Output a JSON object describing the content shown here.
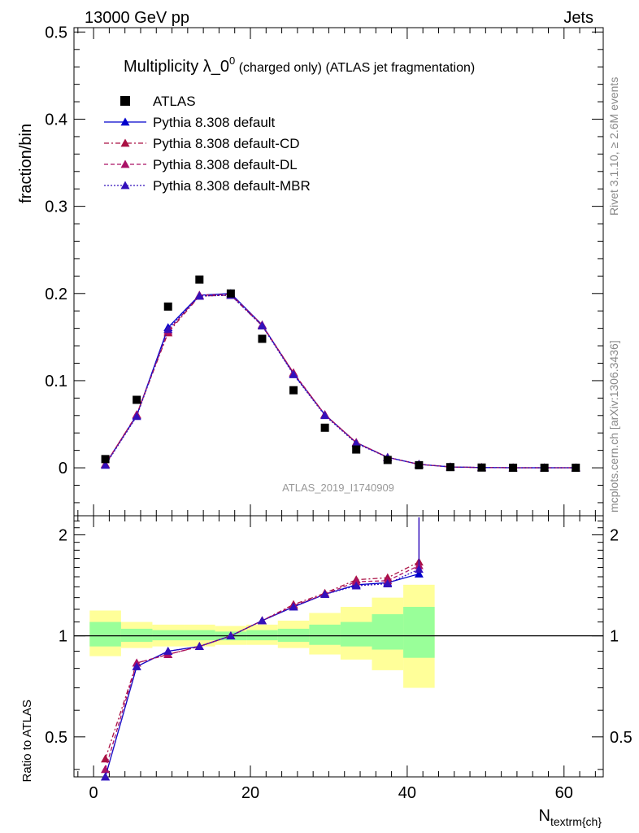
{
  "header": {
    "energy_label": "13000 GeV pp",
    "process_label": "Jets"
  },
  "side_labels": {
    "rivet": "Rivet 3.1.10, ≥ 2.6M events",
    "mcplots": "mcplots.cern.ch [arXiv:1306.3436]"
  },
  "watermark": "ATLAS_2019_I1740909",
  "chart_data": {
    "type": "scatter",
    "title": "Multiplicity λ_0",
    "title_sup": "0",
    "title_suffix": " (charged only) (ATLAS jet fragmentation)",
    "ylabel": "fraction/bin",
    "ratio_ylabel": "Ratio to ATLAS",
    "xlabel": "N",
    "xlabel_sub": "textrm{ch}",
    "xlim": [
      -2.5,
      65
    ],
    "ylim": [
      -0.055,
      0.505
    ],
    "ratio_ylim": [
      0.38,
      2.28
    ],
    "x_ticks": [
      "0",
      "20",
      "40",
      "60"
    ],
    "y_ticks": [
      "0",
      "0.1",
      "0.2",
      "0.3",
      "0.4",
      "0.5"
    ],
    "ratio_ticks": [
      "0.5",
      "1",
      "2"
    ],
    "x": [
      1.5,
      5.5,
      9.5,
      13.5,
      17.5,
      21.5,
      25.5,
      29.5,
      33.5,
      37.5,
      41.5,
      45.5,
      49.5,
      53.5,
      57.5,
      61.5
    ],
    "bin_edges": [
      -0.5,
      3.5,
      7.5,
      11.5,
      15.5,
      19.5,
      23.5,
      27.5,
      31.5,
      35.5,
      39.5,
      43.5
    ],
    "data": {
      "name": "ATLAS",
      "values": [
        0.01,
        0.078,
        0.185,
        0.216,
        0.2,
        0.148,
        0.089,
        0.046,
        0.021,
        0.009,
        0.003,
        0.0008,
        0.0003,
        0.0001,
        0.0001,
        0.0001
      ]
    },
    "band_green": [
      [
        0.93,
        1.1
      ],
      [
        0.96,
        1.05
      ],
      [
        0.97,
        1.04
      ],
      [
        0.97,
        1.04
      ],
      [
        0.97,
        1.03
      ],
      [
        0.97,
        1.04
      ],
      [
        0.96,
        1.05
      ],
      [
        0.94,
        1.08
      ],
      [
        0.93,
        1.1
      ],
      [
        0.91,
        1.16
      ],
      [
        0.86,
        1.22
      ]
    ],
    "band_yellow": [
      [
        0.87,
        1.19
      ],
      [
        0.92,
        1.1
      ],
      [
        0.93,
        1.08
      ],
      [
        0.93,
        1.08
      ],
      [
        0.94,
        1.07
      ],
      [
        0.94,
        1.08
      ],
      [
        0.92,
        1.11
      ],
      [
        0.88,
        1.17
      ],
      [
        0.85,
        1.22
      ],
      [
        0.79,
        1.3
      ],
      [
        0.7,
        1.42
      ]
    ],
    "series": [
      {
        "name": "Pythia 8.308 default",
        "color": "#0000cc",
        "dash": "",
        "values": [
          0.004,
          0.06,
          0.161,
          0.198,
          0.2,
          0.164,
          0.108,
          0.061,
          0.029,
          0.012,
          0.004,
          0.001,
          0.0003,
          0.0001,
          0.0001,
          0.0001
        ],
        "ratio": [
          0.38,
          0.81,
          0.9,
          0.93,
          1.0,
          1.11,
          1.22,
          1.33,
          1.42,
          1.44,
          1.53
        ]
      },
      {
        "name": "Pythia 8.308 default-CD",
        "color": "#aa1144",
        "dash": "6,3,2,3",
        "values": [
          0.004,
          0.061,
          0.155,
          0.197,
          0.198,
          0.163,
          0.109,
          0.061,
          0.029,
          0.012,
          0.004,
          0.001,
          0.0003,
          0.0001,
          0.0001,
          0.0001
        ],
        "ratio": [
          0.43,
          0.83,
          0.88,
          0.93,
          1.0,
          1.11,
          1.24,
          1.34,
          1.47,
          1.49,
          1.66
        ]
      },
      {
        "name": "Pythia 8.308 default-DL",
        "color": "#aa1166",
        "dash": "5,3",
        "values": [
          0.004,
          0.061,
          0.157,
          0.198,
          0.199,
          0.164,
          0.109,
          0.061,
          0.029,
          0.012,
          0.004,
          0.001,
          0.0003,
          0.0001,
          0.0001,
          0.0001
        ],
        "ratio": [
          0.4,
          0.83,
          0.88,
          0.93,
          1.0,
          1.11,
          1.23,
          1.33,
          1.45,
          1.46,
          1.62
        ]
      },
      {
        "name": "Pythia 8.308 default-MBR",
        "color": "#3311bb",
        "dash": "2,2",
        "values": [
          0.003,
          0.059,
          0.159,
          0.197,
          0.198,
          0.163,
          0.107,
          0.06,
          0.028,
          0.012,
          0.004,
          0.001,
          0.0003,
          0.0001,
          0.0001,
          0.0001
        ],
        "ratio": [
          0.36,
          0.81,
          0.9,
          0.93,
          1.0,
          1.11,
          1.22,
          1.33,
          1.41,
          1.43,
          1.58
        ]
      }
    ]
  }
}
